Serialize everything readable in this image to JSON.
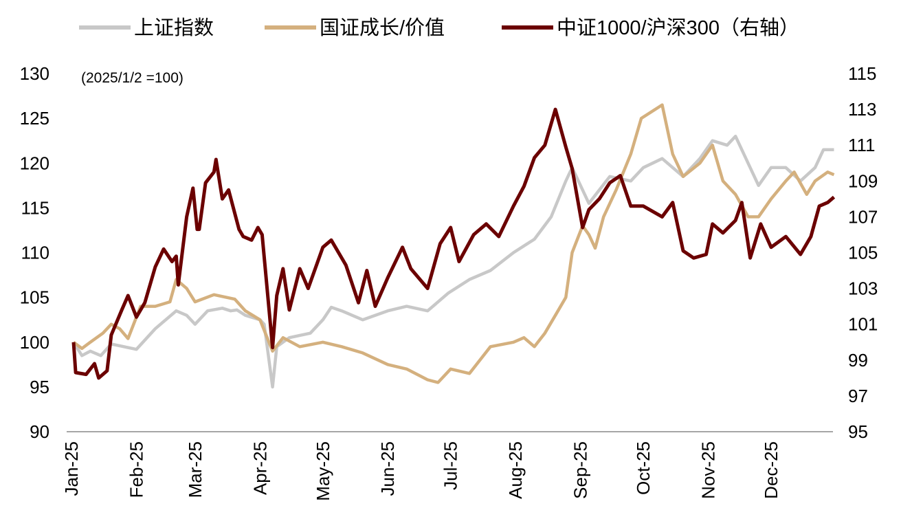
{
  "chart_data": {
    "type": "line",
    "title": "",
    "annotation": "(2025/1/2 =100)",
    "legend_position": "top",
    "grid": false,
    "x_ticks": [
      "Jan-25",
      "Feb-25",
      "Mar-25",
      "Apr-25",
      "May-25",
      "Jun-25",
      "Jul-25",
      "Aug-25",
      "Sep-25",
      "Oct-25",
      "Nov-25",
      "Dec-25"
    ],
    "x_tick_dates": [
      "2025-01-01",
      "2025-02-01",
      "2025-03-01",
      "2025-04-01",
      "2025-05-01",
      "2025-06-01",
      "2025-07-01",
      "2025-08-01",
      "2025-09-01",
      "2025-10-01",
      "2025-11-01",
      "2025-12-01"
    ],
    "xlim": [
      "2025-01-01",
      "2025-12-31"
    ],
    "y_left": {
      "lim": [
        90,
        130
      ],
      "ticks": [
        90,
        95,
        100,
        105,
        110,
        115,
        120,
        125,
        130
      ]
    },
    "y_right": {
      "lim": [
        95,
        115
      ],
      "ticks": [
        95,
        97,
        99,
        101,
        103,
        105,
        107,
        109,
        111,
        113,
        115
      ]
    },
    "series": [
      {
        "name": "上证指数",
        "axis": "left",
        "color": "#c8c8c8",
        "points": [
          [
            "2025-01-02",
            100
          ],
          [
            "2025-01-06",
            98.5
          ],
          [
            "2025-01-10",
            99
          ],
          [
            "2025-01-15",
            98.5
          ],
          [
            "2025-01-20",
            99.8
          ],
          [
            "2025-02-01",
            99.2
          ],
          [
            "2025-02-10",
            101.5
          ],
          [
            "2025-02-20",
            103.5
          ],
          [
            "2025-02-25",
            103
          ],
          [
            "2025-03-01",
            102
          ],
          [
            "2025-03-07",
            103.5
          ],
          [
            "2025-03-14",
            103.8
          ],
          [
            "2025-03-18",
            103.5
          ],
          [
            "2025-03-21",
            103.6
          ],
          [
            "2025-03-25",
            103
          ],
          [
            "2025-04-01",
            102.5
          ],
          [
            "2025-04-03",
            102
          ],
          [
            "2025-04-07",
            95
          ],
          [
            "2025-04-09",
            99.5
          ],
          [
            "2025-04-15",
            100.5
          ],
          [
            "2025-04-25",
            101
          ],
          [
            "2025-05-01",
            102.5
          ],
          [
            "2025-05-05",
            103.9
          ],
          [
            "2025-05-10",
            103.5
          ],
          [
            "2025-05-20",
            102.5
          ],
          [
            "2025-06-01",
            103.5
          ],
          [
            "2025-06-10",
            104
          ],
          [
            "2025-06-20",
            103.5
          ],
          [
            "2025-06-30",
            105.5
          ],
          [
            "2025-07-10",
            107
          ],
          [
            "2025-07-20",
            108
          ],
          [
            "2025-07-31",
            110
          ],
          [
            "2025-08-10",
            111.5
          ],
          [
            "2025-08-18",
            114
          ],
          [
            "2025-08-25",
            118
          ],
          [
            "2025-08-28",
            119.5
          ],
          [
            "2025-09-02",
            117
          ],
          [
            "2025-09-05",
            115.5
          ],
          [
            "2025-09-10",
            117
          ],
          [
            "2025-09-15",
            118.5
          ],
          [
            "2025-09-25",
            118
          ],
          [
            "2025-10-01",
            119.5
          ],
          [
            "2025-10-10",
            120.5
          ],
          [
            "2025-10-15",
            119.5
          ],
          [
            "2025-10-20",
            118.5
          ],
          [
            "2025-10-28",
            120.5
          ],
          [
            "2025-11-03",
            122.5
          ],
          [
            "2025-11-10",
            122
          ],
          [
            "2025-11-14",
            123
          ],
          [
            "2025-11-20",
            120
          ],
          [
            "2025-11-25",
            117.5
          ],
          [
            "2025-12-01",
            119.5
          ],
          [
            "2025-12-08",
            119.5
          ],
          [
            "2025-12-15",
            118
          ],
          [
            "2025-12-22",
            119.5
          ],
          [
            "2025-12-26",
            121.5
          ],
          [
            "2025-12-31",
            121.5
          ]
        ]
      },
      {
        "name": "国证成长/价值",
        "axis": "left",
        "color": "#d4b07e",
        "points": [
          [
            "2025-01-02",
            100
          ],
          [
            "2025-01-06",
            99.3
          ],
          [
            "2025-01-10",
            100
          ],
          [
            "2025-01-16",
            101
          ],
          [
            "2025-01-20",
            102
          ],
          [
            "2025-01-24",
            101.5
          ],
          [
            "2025-01-28",
            100.4
          ],
          [
            "2025-02-03",
            104
          ],
          [
            "2025-02-10",
            104
          ],
          [
            "2025-02-17",
            104.5
          ],
          [
            "2025-02-20",
            107
          ],
          [
            "2025-02-25",
            106
          ],
          [
            "2025-03-01",
            104.5
          ],
          [
            "2025-03-10",
            105.3
          ],
          [
            "2025-03-20",
            104.8
          ],
          [
            "2025-03-25",
            103.5
          ],
          [
            "2025-04-01",
            102.5
          ],
          [
            "2025-04-07",
            99
          ],
          [
            "2025-04-12",
            100.5
          ],
          [
            "2025-04-20",
            99.5
          ],
          [
            "2025-05-01",
            100
          ],
          [
            "2025-05-10",
            99.5
          ],
          [
            "2025-05-20",
            98.8
          ],
          [
            "2025-06-01",
            97.5
          ],
          [
            "2025-06-10",
            97
          ],
          [
            "2025-06-20",
            95.8
          ],
          [
            "2025-06-25",
            95.5
          ],
          [
            "2025-07-01",
            97
          ],
          [
            "2025-07-10",
            96.5
          ],
          [
            "2025-07-20",
            99.5
          ],
          [
            "2025-07-31",
            100
          ],
          [
            "2025-08-05",
            100.5
          ],
          [
            "2025-08-10",
            99.5
          ],
          [
            "2025-08-15",
            101
          ],
          [
            "2025-08-20",
            103
          ],
          [
            "2025-08-25",
            105
          ],
          [
            "2025-08-28",
            110
          ],
          [
            "2025-09-02",
            113
          ],
          [
            "2025-09-05",
            112
          ],
          [
            "2025-09-08",
            110.5
          ],
          [
            "2025-09-12",
            114
          ],
          [
            "2025-09-18",
            117
          ],
          [
            "2025-09-25",
            121
          ],
          [
            "2025-09-30",
            125
          ],
          [
            "2025-10-10",
            126.5
          ],
          [
            "2025-10-15",
            121
          ],
          [
            "2025-10-20",
            118.5
          ],
          [
            "2025-10-28",
            120
          ],
          [
            "2025-11-03",
            122
          ],
          [
            "2025-11-08",
            118
          ],
          [
            "2025-11-14",
            116.5
          ],
          [
            "2025-11-20",
            114
          ],
          [
            "2025-11-25",
            114
          ],
          [
            "2025-12-01",
            116
          ],
          [
            "2025-12-08",
            118
          ],
          [
            "2025-12-12",
            119
          ],
          [
            "2025-12-18",
            116.5
          ],
          [
            "2025-12-22",
            118
          ],
          [
            "2025-12-28",
            119
          ],
          [
            "2025-12-31",
            118.7
          ]
        ]
      },
      {
        "name": "中证1000/沪深300（右轴）",
        "axis": "right",
        "color": "#6b0000",
        "points": [
          [
            "2025-01-02",
            100
          ],
          [
            "2025-01-03",
            98.3
          ],
          [
            "2025-01-08",
            98.2
          ],
          [
            "2025-01-12",
            98.8
          ],
          [
            "2025-01-14",
            98
          ],
          [
            "2025-01-18",
            98.4
          ],
          [
            "2025-01-20",
            100.4
          ],
          [
            "2025-01-25",
            101.8
          ],
          [
            "2025-01-28",
            102.6
          ],
          [
            "2025-02-01",
            101.4
          ],
          [
            "2025-02-05",
            102.2
          ],
          [
            "2025-02-10",
            104.2
          ],
          [
            "2025-02-14",
            105.2
          ],
          [
            "2025-02-18",
            104.5
          ],
          [
            "2025-02-20",
            104.8
          ],
          [
            "2025-02-21",
            103.2
          ],
          [
            "2025-02-25",
            107
          ],
          [
            "2025-02-28",
            108.6
          ],
          [
            "2025-03-02",
            106.3
          ],
          [
            "2025-03-03",
            106.3
          ],
          [
            "2025-03-06",
            108.9
          ],
          [
            "2025-03-10",
            109.5
          ],
          [
            "2025-03-11",
            110.2
          ],
          [
            "2025-03-14",
            108
          ],
          [
            "2025-03-17",
            108.5
          ],
          [
            "2025-03-22",
            106.3
          ],
          [
            "2025-03-24",
            105.9
          ],
          [
            "2025-03-28",
            105.7
          ],
          [
            "2025-03-31",
            106.4
          ],
          [
            "2025-04-02",
            106
          ],
          [
            "2025-04-07",
            99.7
          ],
          [
            "2025-04-09",
            102.6
          ],
          [
            "2025-04-12",
            104.1
          ],
          [
            "2025-04-15",
            101.8
          ],
          [
            "2025-04-20",
            104.1
          ],
          [
            "2025-04-24",
            103
          ],
          [
            "2025-05-01",
            105.3
          ],
          [
            "2025-05-05",
            105.7
          ],
          [
            "2025-05-12",
            104.3
          ],
          [
            "2025-05-18",
            102.2
          ],
          [
            "2025-05-22",
            104
          ],
          [
            "2025-05-26",
            102
          ],
          [
            "2025-06-01",
            103.6
          ],
          [
            "2025-06-08",
            105.3
          ],
          [
            "2025-06-12",
            104.1
          ],
          [
            "2025-06-20",
            103
          ],
          [
            "2025-06-26",
            105.5
          ],
          [
            "2025-07-01",
            106.4
          ],
          [
            "2025-07-05",
            104.5
          ],
          [
            "2025-07-12",
            106
          ],
          [
            "2025-07-18",
            106.6
          ],
          [
            "2025-07-24",
            105.9
          ],
          [
            "2025-07-31",
            107.6
          ],
          [
            "2025-08-05",
            108.7
          ],
          [
            "2025-08-10",
            110.3
          ],
          [
            "2025-08-15",
            111
          ],
          [
            "2025-08-18",
            112.2
          ],
          [
            "2025-08-20",
            113
          ],
          [
            "2025-08-25",
            110.9
          ],
          [
            "2025-08-28",
            109.7
          ],
          [
            "2025-09-02",
            106.4
          ],
          [
            "2025-09-05",
            107.4
          ],
          [
            "2025-09-10",
            108
          ],
          [
            "2025-09-15",
            108.9
          ],
          [
            "2025-09-20",
            109.3
          ],
          [
            "2025-09-25",
            107.6
          ],
          [
            "2025-10-01",
            107.6
          ],
          [
            "2025-10-10",
            107
          ],
          [
            "2025-10-15",
            107.8
          ],
          [
            "2025-10-20",
            105.1
          ],
          [
            "2025-10-25",
            104.7
          ],
          [
            "2025-10-31",
            104.9
          ],
          [
            "2025-11-03",
            106.6
          ],
          [
            "2025-11-08",
            106.1
          ],
          [
            "2025-11-14",
            106.8
          ],
          [
            "2025-11-17",
            107.8
          ],
          [
            "2025-11-21",
            104.7
          ],
          [
            "2025-11-26",
            106.6
          ],
          [
            "2025-12-01",
            105.3
          ],
          [
            "2025-12-08",
            105.9
          ],
          [
            "2025-12-15",
            104.9
          ],
          [
            "2025-12-20",
            105.9
          ],
          [
            "2025-12-24",
            107.6
          ],
          [
            "2025-12-28",
            107.8
          ],
          [
            "2025-12-31",
            108.1
          ]
        ]
      }
    ]
  }
}
